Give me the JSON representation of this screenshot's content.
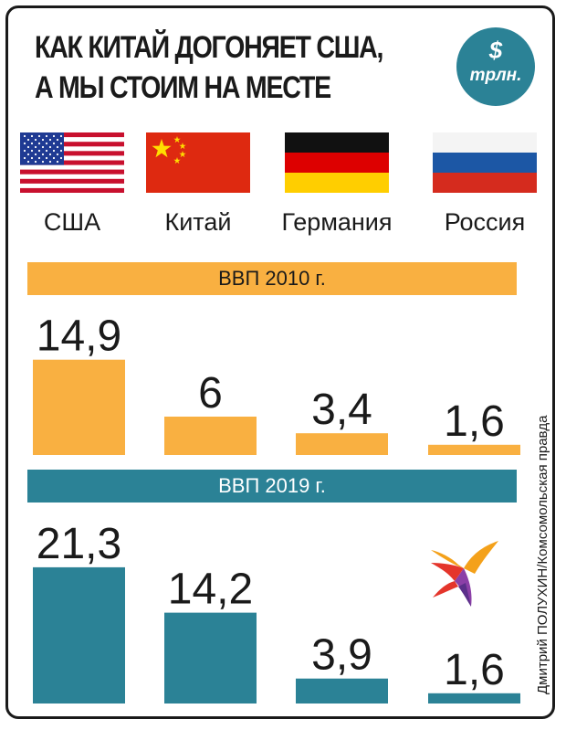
{
  "title_lines": [
    "КАК КИТАЙ ДОГОНЯЕТ США,",
    "А МЫ СТОИМ НА МЕСТЕ"
  ],
  "badge": {
    "symbol": "$",
    "unit": "трлн.",
    "color": "#2b8296"
  },
  "countries": [
    "США",
    "Китай",
    "Германия",
    "Россия"
  ],
  "credit": "Дмитрий ПОЛУХИН/Комсомольская правда",
  "chart_data": [
    {
      "type": "bar",
      "title": "ВВП 2010 г.",
      "categories": [
        "США",
        "Китай",
        "Германия",
        "Россия"
      ],
      "values": [
        14.9,
        6,
        3.4,
        1.6
      ],
      "value_labels": [
        "14,9",
        "6",
        "3,4",
        "1,6"
      ],
      "color": "#f9b041"
    },
    {
      "type": "bar",
      "title": "ВВП 2019 г.",
      "categories": [
        "США",
        "Китай",
        "Германия",
        "Россия"
      ],
      "values": [
        21.3,
        14.2,
        3.9,
        1.6
      ],
      "value_labels": [
        "21,3",
        "14,2",
        "3,9",
        "1,6"
      ],
      "color": "#2b8296"
    }
  ],
  "colors": {
    "band_2010": "#f9b041",
    "band_2019": "#2b8296",
    "text": "#1a1a1a"
  }
}
